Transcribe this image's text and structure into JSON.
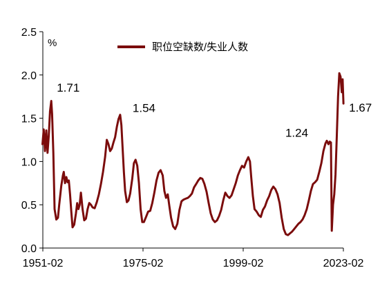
{
  "chart_data": {
    "type": "line",
    "unit_label": "%",
    "ylim": [
      0,
      2.5
    ],
    "y_ticks": [
      "0.0",
      "0.5",
      "1.0",
      "1.5",
      "2.0",
      "2.5"
    ],
    "x_range": [
      1951.08,
      2023.08
    ],
    "x_ticks": [
      {
        "label": "1951-02",
        "value": 1951.08
      },
      {
        "label": "1975-02",
        "value": 1975.08
      },
      {
        "label": "1999-02",
        "value": 1999.08
      },
      {
        "label": "2023-02",
        "value": 2023.08
      }
    ],
    "grid": false,
    "legend_position": "top-center",
    "series": [
      {
        "name": "职位空缺数/失业人数",
        "color": "#7b0c0c",
        "points": [
          [
            1951.0,
            1.2
          ],
          [
            1951.3,
            1.37
          ],
          [
            1951.6,
            1.12
          ],
          [
            1951.9,
            1.36
          ],
          [
            1952.2,
            1.1
          ],
          [
            1952.5,
            1.3
          ],
          [
            1952.8,
            1.58
          ],
          [
            1953.1,
            1.7
          ],
          [
            1953.3,
            1.55
          ],
          [
            1953.6,
            1.1
          ],
          [
            1953.9,
            0.45
          ],
          [
            1954.3,
            0.33
          ],
          [
            1954.7,
            0.35
          ],
          [
            1955.0,
            0.5
          ],
          [
            1955.5,
            0.72
          ],
          [
            1955.9,
            0.84
          ],
          [
            1956.1,
            0.88
          ],
          [
            1956.4,
            0.75
          ],
          [
            1956.7,
            0.82
          ],
          [
            1957.0,
            0.76
          ],
          [
            1957.3,
            0.78
          ],
          [
            1957.6,
            0.62
          ],
          [
            1957.9,
            0.42
          ],
          [
            1958.2,
            0.24
          ],
          [
            1958.6,
            0.27
          ],
          [
            1959.0,
            0.4
          ],
          [
            1959.3,
            0.52
          ],
          [
            1959.6,
            0.45
          ],
          [
            1959.9,
            0.5
          ],
          [
            1960.2,
            0.64
          ],
          [
            1960.6,
            0.45
          ],
          [
            1961.0,
            0.32
          ],
          [
            1961.4,
            0.34
          ],
          [
            1961.8,
            0.45
          ],
          [
            1962.2,
            0.52
          ],
          [
            1962.6,
            0.5
          ],
          [
            1963.0,
            0.47
          ],
          [
            1963.5,
            0.46
          ],
          [
            1964.0,
            0.53
          ],
          [
            1964.5,
            0.62
          ],
          [
            1965.0,
            0.74
          ],
          [
            1965.5,
            0.88
          ],
          [
            1966.0,
            1.05
          ],
          [
            1966.4,
            1.25
          ],
          [
            1966.8,
            1.2
          ],
          [
            1967.2,
            1.12
          ],
          [
            1967.6,
            1.15
          ],
          [
            1968.0,
            1.22
          ],
          [
            1968.4,
            1.28
          ],
          [
            1968.8,
            1.4
          ],
          [
            1969.2,
            1.49
          ],
          [
            1969.6,
            1.54
          ],
          [
            1969.9,
            1.42
          ],
          [
            1970.2,
            1.15
          ],
          [
            1970.5,
            0.88
          ],
          [
            1970.8,
            0.66
          ],
          [
            1971.2,
            0.53
          ],
          [
            1971.6,
            0.55
          ],
          [
            1972.0,
            0.63
          ],
          [
            1972.5,
            0.8
          ],
          [
            1972.9,
            0.98
          ],
          [
            1973.3,
            1.02
          ],
          [
            1973.7,
            0.95
          ],
          [
            1974.1,
            0.75
          ],
          [
            1974.5,
            0.45
          ],
          [
            1974.9,
            0.3
          ],
          [
            1975.3,
            0.3
          ],
          [
            1975.8,
            0.36
          ],
          [
            1976.3,
            0.42
          ],
          [
            1976.8,
            0.43
          ],
          [
            1977.3,
            0.52
          ],
          [
            1977.8,
            0.64
          ],
          [
            1978.3,
            0.78
          ],
          [
            1978.8,
            0.87
          ],
          [
            1979.3,
            0.9
          ],
          [
            1979.8,
            0.84
          ],
          [
            1980.2,
            0.66
          ],
          [
            1980.6,
            0.58
          ],
          [
            1981.0,
            0.62
          ],
          [
            1981.4,
            0.48
          ],
          [
            1981.8,
            0.35
          ],
          [
            1982.3,
            0.25
          ],
          [
            1982.8,
            0.22
          ],
          [
            1983.3,
            0.28
          ],
          [
            1983.8,
            0.44
          ],
          [
            1984.3,
            0.54
          ],
          [
            1984.8,
            0.56
          ],
          [
            1985.3,
            0.57
          ],
          [
            1985.8,
            0.58
          ],
          [
            1986.3,
            0.6
          ],
          [
            1986.8,
            0.63
          ],
          [
            1987.3,
            0.7
          ],
          [
            1987.8,
            0.74
          ],
          [
            1988.3,
            0.78
          ],
          [
            1988.8,
            0.81
          ],
          [
            1989.3,
            0.8
          ],
          [
            1989.8,
            0.74
          ],
          [
            1990.3,
            0.65
          ],
          [
            1990.8,
            0.52
          ],
          [
            1991.3,
            0.4
          ],
          [
            1991.8,
            0.33
          ],
          [
            1992.3,
            0.3
          ],
          [
            1992.8,
            0.32
          ],
          [
            1993.3,
            0.37
          ],
          [
            1993.8,
            0.44
          ],
          [
            1994.3,
            0.55
          ],
          [
            1994.8,
            0.64
          ],
          [
            1995.3,
            0.6
          ],
          [
            1995.8,
            0.58
          ],
          [
            1996.3,
            0.61
          ],
          [
            1996.8,
            0.68
          ],
          [
            1997.3,
            0.75
          ],
          [
            1997.8,
            0.84
          ],
          [
            1998.3,
            0.9
          ],
          [
            1998.8,
            0.95
          ],
          [
            1999.3,
            0.93
          ],
          [
            1999.8,
            1.0
          ],
          [
            2000.3,
            1.05
          ],
          [
            2000.7,
            1.0
          ],
          [
            2001.0,
            0.82
          ],
          [
            2001.4,
            0.6
          ],
          [
            2001.8,
            0.45
          ],
          [
            2002.3,
            0.42
          ],
          [
            2002.8,
            0.38
          ],
          [
            2003.3,
            0.36
          ],
          [
            2003.8,
            0.44
          ],
          [
            2004.3,
            0.48
          ],
          [
            2004.8,
            0.55
          ],
          [
            2005.3,
            0.6
          ],
          [
            2005.8,
            0.67
          ],
          [
            2006.3,
            0.71
          ],
          [
            2006.8,
            0.68
          ],
          [
            2007.3,
            0.62
          ],
          [
            2007.8,
            0.52
          ],
          [
            2008.3,
            0.35
          ],
          [
            2008.8,
            0.22
          ],
          [
            2009.3,
            0.16
          ],
          [
            2009.8,
            0.15
          ],
          [
            2010.3,
            0.17
          ],
          [
            2010.8,
            0.19
          ],
          [
            2011.3,
            0.22
          ],
          [
            2011.8,
            0.25
          ],
          [
            2012.3,
            0.28
          ],
          [
            2012.8,
            0.3
          ],
          [
            2013.3,
            0.33
          ],
          [
            2013.8,
            0.38
          ],
          [
            2014.3,
            0.45
          ],
          [
            2014.8,
            0.55
          ],
          [
            2015.3,
            0.66
          ],
          [
            2015.8,
            0.74
          ],
          [
            2016.3,
            0.76
          ],
          [
            2016.8,
            0.79
          ],
          [
            2017.3,
            0.88
          ],
          [
            2017.8,
            0.98
          ],
          [
            2018.3,
            1.12
          ],
          [
            2018.8,
            1.21
          ],
          [
            2019.1,
            1.24
          ],
          [
            2019.5,
            1.2
          ],
          [
            2019.8,
            1.23
          ],
          [
            2020.1,
            1.22
          ],
          [
            2020.3,
            0.2
          ],
          [
            2020.6,
            0.5
          ],
          [
            2020.9,
            0.62
          ],
          [
            2021.2,
            0.85
          ],
          [
            2021.5,
            1.3
          ],
          [
            2021.8,
            1.75
          ],
          [
            2022.1,
            2.02
          ],
          [
            2022.4,
            1.98
          ],
          [
            2022.7,
            1.8
          ],
          [
            2022.9,
            1.95
          ],
          [
            2023.1,
            1.67
          ]
        ]
      }
    ],
    "annotations": [
      {
        "text": "1.71",
        "x": 1953.1,
        "y": 1.71
      },
      {
        "text": "1.54",
        "x": 1969.6,
        "y": 1.54
      },
      {
        "text": "1.24",
        "x": 2019.1,
        "y": 1.24
      },
      {
        "text": "1.67",
        "x": 2023.1,
        "y": 1.67
      }
    ]
  }
}
